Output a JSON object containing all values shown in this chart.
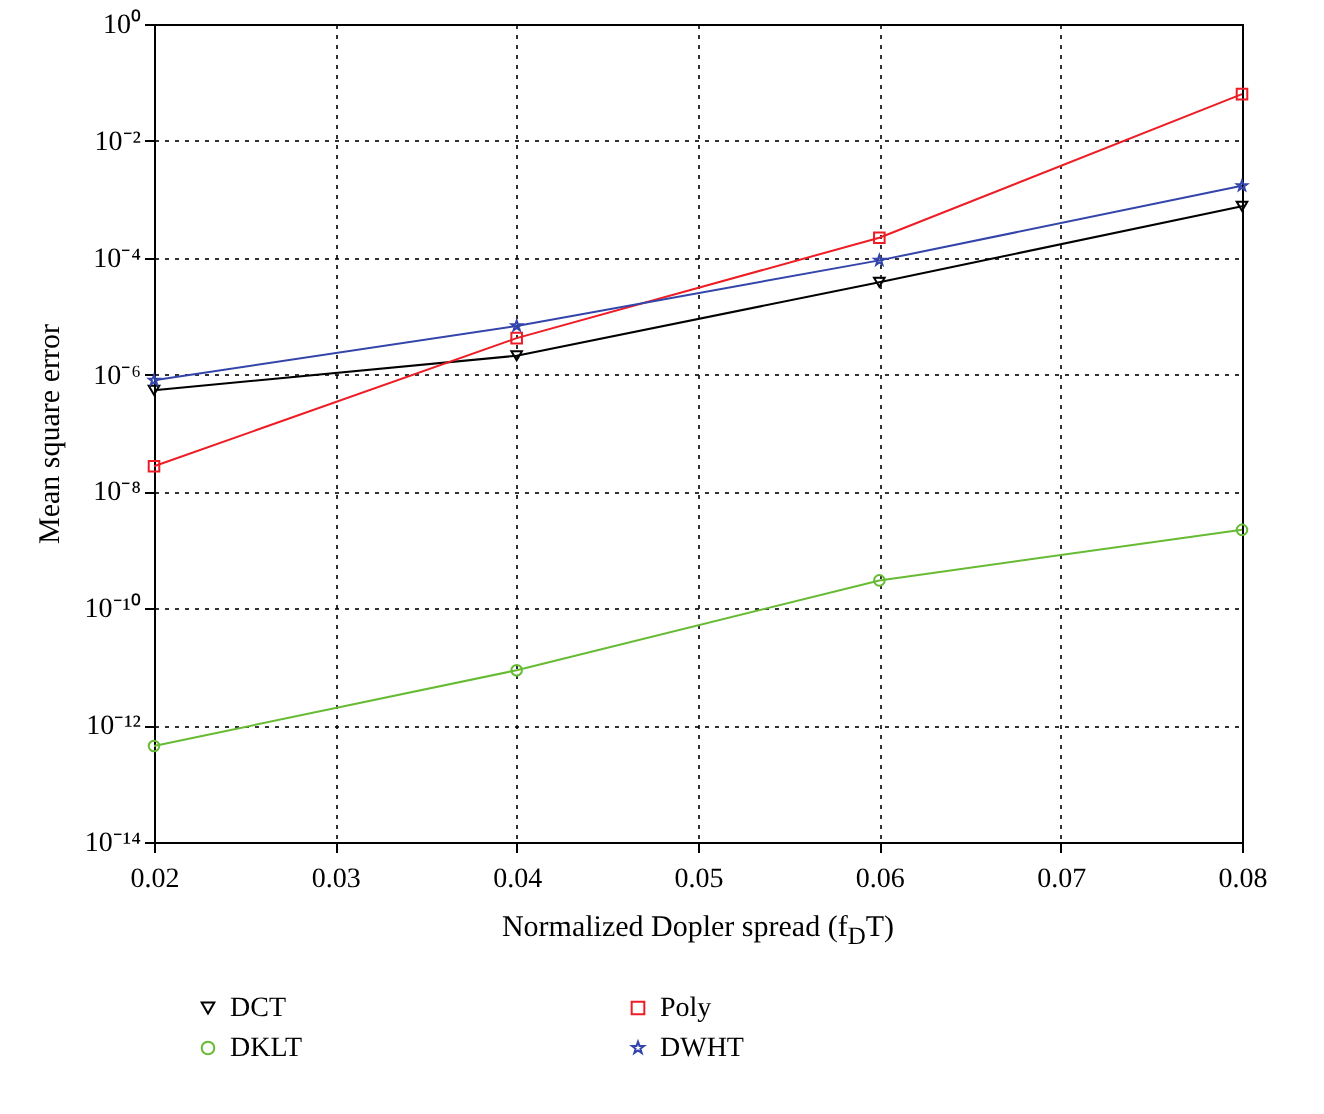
{
  "chart_data": {
    "type": "line",
    "xlabel": "Normalized Dopler spread (f$_{D}$T)",
    "ylabel": "Mean square error",
    "x": [
      0.02,
      0.04,
      0.06,
      0.08
    ],
    "series": [
      {
        "name": "DCT",
        "color": "#000000",
        "marker": "triangle",
        "values": [
          5.4e-07,
          2.1e-06,
          3.8e-05,
          0.00076
        ]
      },
      {
        "name": "DKLT",
        "color": "#66bb33",
        "marker": "circle",
        "values": [
          4.4e-13,
          8.7e-12,
          3e-10,
          2.2e-09
        ]
      },
      {
        "name": "Poly",
        "color": "#ee1c24",
        "marker": "square",
        "values": [
          2.7e-08,
          4.2e-06,
          0.00022,
          0.063
        ]
      },
      {
        "name": "DWHT",
        "color": "#3344aa",
        "marker": "star",
        "values": [
          8e-07,
          6.8e-06,
          9e-05,
          0.0017
        ]
      }
    ],
    "log": true,
    "xlim": [
      0.02,
      0.08
    ],
    "xticks": [
      0.02,
      0.03,
      0.04,
      0.05,
      0.06,
      0.07,
      0.08
    ],
    "ylim": [
      1e-14,
      1
    ],
    "yticks": [
      {
        "value": 1e-14,
        "label": "10⁻¹⁴"
      },
      {
        "value": 1e-12,
        "label": "10⁻¹²"
      },
      {
        "value": 1e-10,
        "label": "10⁻¹⁰"
      },
      {
        "value": 1e-08,
        "label": "10⁻⁸"
      },
      {
        "value": 1e-06,
        "label": "10⁻⁶"
      },
      {
        "value": 0.0001,
        "label": "10⁻⁴"
      },
      {
        "value": 0.01,
        "label": "10⁻²"
      },
      {
        "value": 1,
        "label": "10⁰"
      }
    ],
    "grid": true,
    "legend": "bottom",
    "line_style": "solid"
  }
}
